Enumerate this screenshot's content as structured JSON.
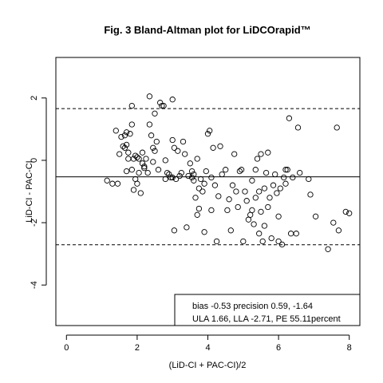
{
  "chart_data": {
    "type": "scatter",
    "title": "Fig. 3 Bland-Altman plot for LiDCOrapid™",
    "xlabel": "(LiD-CI + PAC-CI)/2",
    "ylabel": "LiD-CI - PAC-CI",
    "xlim": [
      -0.3,
      8.3
    ],
    "ylim": [
      -5.3,
      3.3
    ],
    "x_ticks": [
      0,
      2,
      4,
      6,
      8
    ],
    "y_ticks": [
      -4,
      -2,
      0,
      2
    ],
    "grid": false,
    "reference_lines": [
      {
        "name": "ULA",
        "y": 1.66,
        "style": "dashed"
      },
      {
        "name": "bias",
        "y": -0.53,
        "style": "solid"
      },
      {
        "name": "LLA",
        "y": -2.71,
        "style": "dashed"
      }
    ],
    "legend_placement": "bottom-right",
    "legend_lines": [
      "bias -0.53  precision 0.59, -1.64",
      "ULA 1.66, LLA -2.71, PE 55.11percent"
    ],
    "points": [
      [
        1.15,
        -0.65
      ],
      [
        1.3,
        -0.75
      ],
      [
        1.4,
        0.95
      ],
      [
        1.45,
        -0.75
      ],
      [
        1.5,
        0.2
      ],
      [
        1.55,
        0.75
      ],
      [
        1.6,
        0.45
      ],
      [
        1.65,
        0.4
      ],
      [
        1.65,
        0.8
      ],
      [
        1.7,
        0.9
      ],
      [
        1.7,
        0.5
      ],
      [
        1.7,
        -0.35
      ],
      [
        1.75,
        0.25
      ],
      [
        1.75,
        0.05
      ],
      [
        1.8,
        0.85
      ],
      [
        1.85,
        1.15
      ],
      [
        1.85,
        1.75
      ],
      [
        1.85,
        -0.3
      ],
      [
        1.9,
        0.05
      ],
      [
        1.9,
        -0.95
      ],
      [
        1.95,
        0.15
      ],
      [
        1.95,
        -0.6
      ],
      [
        2.0,
        -0.75
      ],
      [
        2.0,
        0.1
      ],
      [
        2.05,
        -0.4
      ],
      [
        2.05,
        0.05
      ],
      [
        2.1,
        -1.05
      ],
      [
        2.15,
        0.25
      ],
      [
        2.15,
        -0.1
      ],
      [
        2.2,
        -0.25
      ],
      [
        2.2,
        -0.2
      ],
      [
        2.25,
        0.05
      ],
      [
        2.3,
        -0.4
      ],
      [
        2.35,
        2.05
      ],
      [
        2.35,
        1.15
      ],
      [
        2.4,
        0.8
      ],
      [
        2.45,
        0.4
      ],
      [
        2.45,
        -0.05
      ],
      [
        2.5,
        1.5
      ],
      [
        2.5,
        0.3
      ],
      [
        2.55,
        0.6
      ],
      [
        2.6,
        -0.3
      ],
      [
        2.65,
        1.85
      ],
      [
        2.7,
        1.75
      ],
      [
        2.75,
        1.75
      ],
      [
        2.8,
        -0.6
      ],
      [
        2.8,
        0.0
      ],
      [
        2.85,
        -0.4
      ],
      [
        2.9,
        -0.45
      ],
      [
        2.95,
        -0.55
      ],
      [
        3.0,
        1.95
      ],
      [
        3.0,
        0.65
      ],
      [
        3.0,
        -0.55
      ],
      [
        3.05,
        0.4
      ],
      [
        3.05,
        -2.25
      ],
      [
        3.1,
        -0.6
      ],
      [
        3.15,
        0.3
      ],
      [
        3.2,
        -0.5
      ],
      [
        3.25,
        -0.4
      ],
      [
        3.3,
        0.6
      ],
      [
        3.35,
        0.2
      ],
      [
        3.4,
        -2.15
      ],
      [
        3.45,
        -0.5
      ],
      [
        3.5,
        -0.1
      ],
      [
        3.55,
        -0.55
      ],
      [
        3.55,
        -0.35
      ],
      [
        3.6,
        -0.65
      ],
      [
        3.6,
        -0.45
      ],
      [
        3.65,
        -1.2
      ],
      [
        3.7,
        -1.75
      ],
      [
        3.7,
        0.05
      ],
      [
        3.75,
        -0.9
      ],
      [
        3.75,
        -1.55
      ],
      [
        3.8,
        -0.6
      ],
      [
        3.85,
        -1.0
      ],
      [
        3.9,
        -0.75
      ],
      [
        3.9,
        -2.3
      ],
      [
        3.95,
        -0.35
      ],
      [
        4.0,
        0.85
      ],
      [
        4.05,
        0.95
      ],
      [
        4.1,
        -0.55
      ],
      [
        4.1,
        -1.6
      ],
      [
        4.15,
        0.4
      ],
      [
        4.2,
        -0.8
      ],
      [
        4.25,
        -2.6
      ],
      [
        4.3,
        -1.15
      ],
      [
        4.35,
        0.45
      ],
      [
        4.4,
        -0.45
      ],
      [
        4.5,
        -0.3
      ],
      [
        4.55,
        -1.6
      ],
      [
        4.6,
        -1.25
      ],
      [
        4.65,
        -2.25
      ],
      [
        4.7,
        -0.8
      ],
      [
        4.75,
        0.2
      ],
      [
        4.8,
        -1.0
      ],
      [
        4.85,
        -1.5
      ],
      [
        4.9,
        -0.35
      ],
      [
        4.95,
        -0.3
      ],
      [
        5.0,
        -2.6
      ],
      [
        5.05,
        -1.0
      ],
      [
        5.1,
        -1.3
      ],
      [
        5.15,
        -1.9
      ],
      [
        5.2,
        -1.75
      ],
      [
        5.25,
        -1.6
      ],
      [
        5.25,
        -0.65
      ],
      [
        5.3,
        -2.05
      ],
      [
        5.35,
        -0.3
      ],
      [
        5.35,
        -1.2
      ],
      [
        5.4,
        0.05
      ],
      [
        5.45,
        -2.35
      ],
      [
        5.45,
        -1.0
      ],
      [
        5.5,
        -1.65
      ],
      [
        5.5,
        0.2
      ],
      [
        5.55,
        -2.6
      ],
      [
        5.6,
        -2.1
      ],
      [
        5.6,
        -0.9
      ],
      [
        5.65,
        -0.4
      ],
      [
        5.7,
        0.25
      ],
      [
        5.7,
        -1.5
      ],
      [
        5.75,
        -1.2
      ],
      [
        5.8,
        -2.5
      ],
      [
        5.85,
        -0.8
      ],
      [
        5.9,
        -0.45
      ],
      [
        5.95,
        -1.05
      ],
      [
        6.0,
        -1.8
      ],
      [
        6.0,
        -2.6
      ],
      [
        6.05,
        -0.9
      ],
      [
        6.1,
        -2.7
      ],
      [
        6.15,
        -0.55
      ],
      [
        6.2,
        -0.3
      ],
      [
        6.2,
        -0.75
      ],
      [
        6.25,
        -0.3
      ],
      [
        6.3,
        1.35
      ],
      [
        6.35,
        -2.35
      ],
      [
        6.4,
        -0.55
      ],
      [
        6.5,
        -2.35
      ],
      [
        6.55,
        1.05
      ],
      [
        6.6,
        -0.4
      ],
      [
        6.85,
        -0.6
      ],
      [
        6.9,
        -1.1
      ],
      [
        7.05,
        -1.8
      ],
      [
        7.4,
        -2.85
      ],
      [
        7.55,
        -2.0
      ],
      [
        7.65,
        1.05
      ],
      [
        7.7,
        -2.25
      ],
      [
        7.9,
        -1.65
      ],
      [
        8.0,
        -1.7
      ]
    ]
  }
}
